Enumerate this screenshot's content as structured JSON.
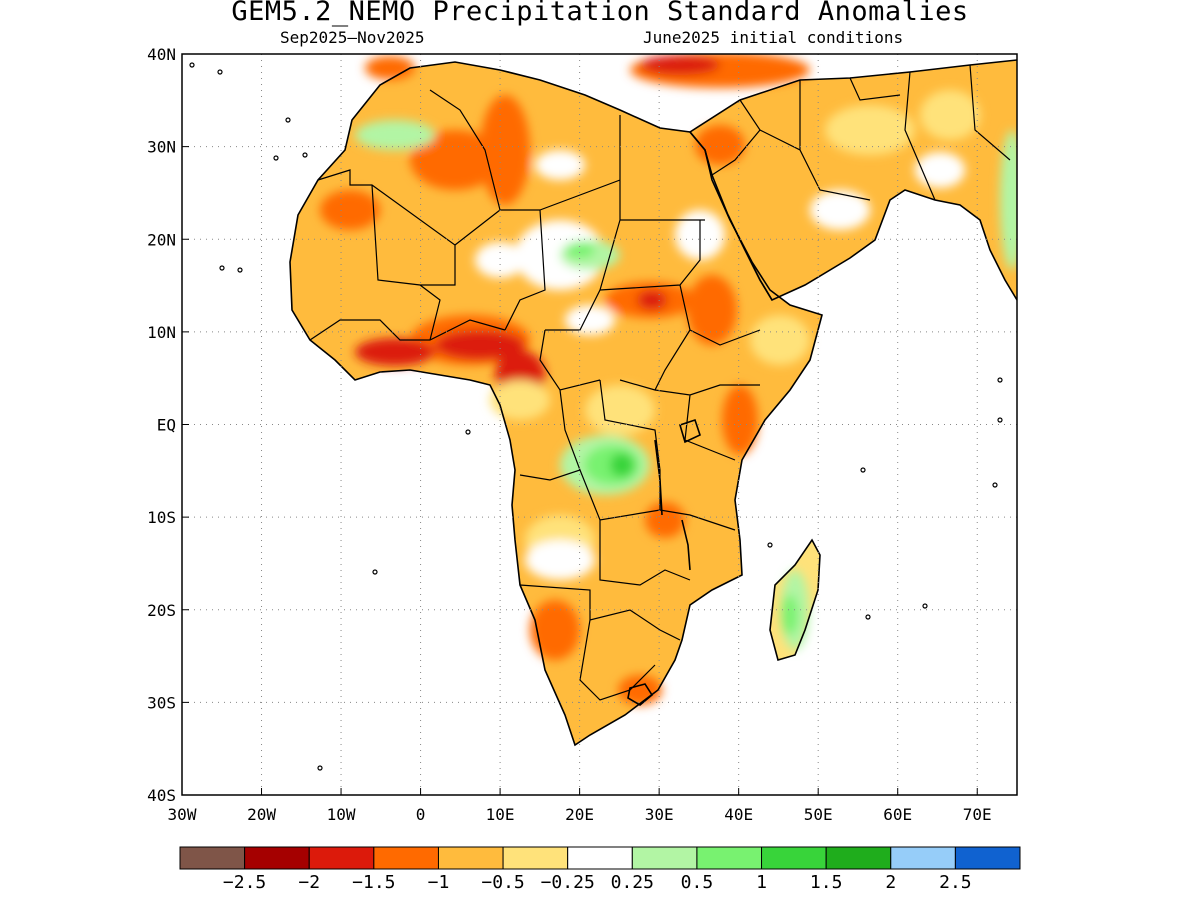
{
  "header": {
    "title": "GEM5.2_NEMO Precipitation Standard Anomalies",
    "period": "Sep2025–Nov2025",
    "init": "June2025 initial conditions"
  },
  "map": {
    "lat_ticks": [
      "40N",
      "30N",
      "20N",
      "10N",
      "EQ",
      "10S",
      "20S",
      "30S",
      "40S"
    ],
    "lon_ticks": [
      "30W",
      "20W",
      "10W",
      "0",
      "10E",
      "20E",
      "30E",
      "40E",
      "50E",
      "60E",
      "70E"
    ],
    "lon_range": [
      -30,
      75
    ],
    "lat_range": [
      -40,
      40
    ],
    "grid": "dotted"
  },
  "legend": {
    "colors": [
      "#7f5548",
      "#a50000",
      "#dc1a0b",
      "#ff6a00",
      "#ffbb3d",
      "#ffe27a",
      "#ffffff",
      "#b2f5a4",
      "#78f270",
      "#38d43a",
      "#1fad1c",
      "#96cdf9",
      "#1062d0"
    ],
    "labels": [
      "−2.5",
      "−2",
      "−1.5",
      "−1",
      "−0.5",
      "−0.25",
      "0.25",
      "0.5",
      "1",
      "1.5",
      "2",
      "2.5"
    ]
  }
}
